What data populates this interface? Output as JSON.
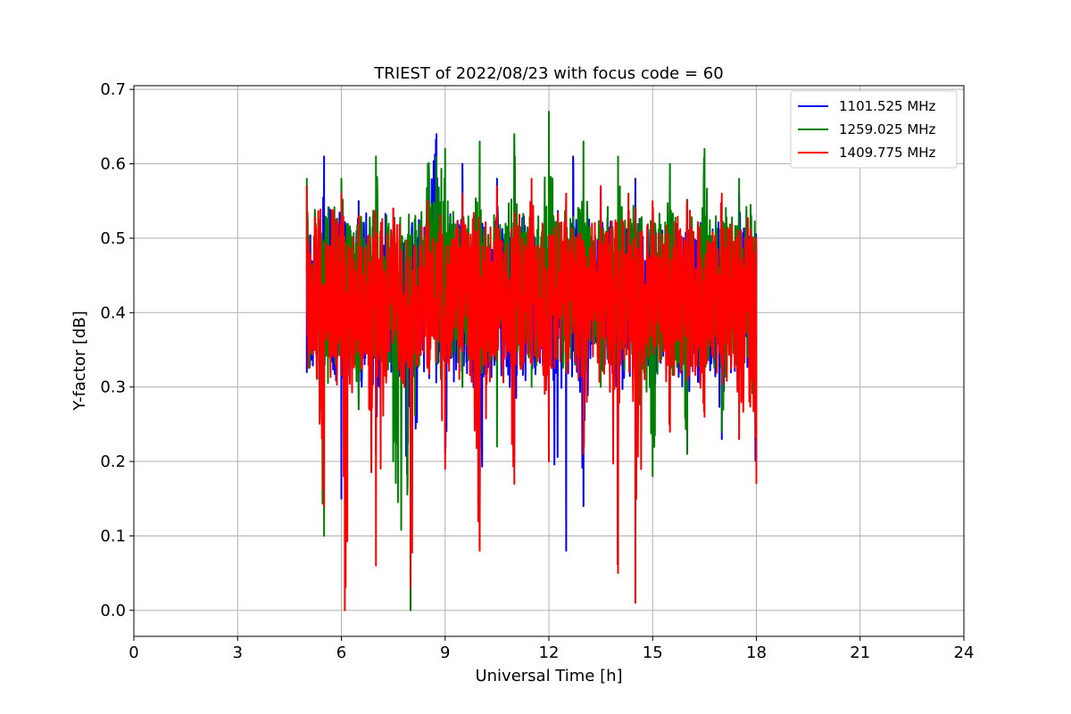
{
  "chart_data": {
    "type": "line",
    "title": "TRIEST of 2022/08/23 with focus code = 60",
    "xlabel": "Universal Time [h]",
    "ylabel": "Y-factor [dB]",
    "xlim": [
      0,
      24
    ],
    "ylim": [
      -0.035,
      0.705
    ],
    "xticks": [
      0,
      3,
      6,
      9,
      12,
      15,
      18,
      21,
      24
    ],
    "xtick_labels": [
      "0",
      "3",
      "6",
      "9",
      "12",
      "15",
      "18",
      "21",
      "24"
    ],
    "yticks": [
      0.0,
      0.1,
      0.2,
      0.3,
      0.4,
      0.5,
      0.6,
      0.7
    ],
    "ytick_labels": [
      "0.0",
      "0.1",
      "0.2",
      "0.3",
      "0.4",
      "0.5",
      "0.6",
      "0.7"
    ],
    "grid": true,
    "legend_position": "top-right",
    "x_range_of_data": [
      5.0,
      18.0
    ],
    "series": [
      {
        "name": "1101.525 MHz",
        "color": "#0000ff",
        "x": [
          5.0,
          5.5,
          6.0,
          6.5,
          7.0,
          7.5,
          8.0,
          8.5,
          8.75,
          9.0,
          9.5,
          10.0,
          10.5,
          11.0,
          11.5,
          12.0,
          12.5,
          12.7,
          13.0,
          13.5,
          14.0,
          14.5,
          15.0,
          15.5,
          16.0,
          16.5,
          17.0,
          17.5,
          18.0
        ],
        "values": [
          0.32,
          0.61,
          0.15,
          0.55,
          0.21,
          0.54,
          0.09,
          0.53,
          0.64,
          0.21,
          0.6,
          0.13,
          0.58,
          0.2,
          0.55,
          0.25,
          0.08,
          0.61,
          0.14,
          0.57,
          0.2,
          0.58,
          0.25,
          0.54,
          0.26,
          0.55,
          0.23,
          0.56,
          0.18
        ]
      },
      {
        "name": "1259.025 MHz",
        "color": "#008000",
        "x": [
          5.0,
          5.5,
          6.0,
          6.5,
          7.0,
          7.5,
          8.0,
          8.5,
          9.0,
          9.5,
          10.0,
          10.5,
          11.0,
          11.5,
          12.0,
          12.5,
          13.0,
          13.5,
          14.0,
          14.5,
          15.0,
          15.5,
          16.0,
          16.5,
          17.0,
          17.5,
          18.0
        ],
        "values": [
          0.58,
          0.1,
          0.58,
          0.27,
          0.61,
          0.2,
          0.0,
          0.6,
          0.62,
          0.3,
          0.63,
          0.22,
          0.64,
          0.3,
          0.67,
          0.32,
          0.63,
          0.3,
          0.61,
          0.31,
          0.18,
          0.6,
          0.21,
          0.62,
          0.24,
          0.58,
          0.2
        ]
      },
      {
        "name": "1409.775 MHz",
        "color": "#ff0000",
        "x": [
          5.0,
          5.5,
          6.0,
          6.1,
          6.5,
          7.0,
          7.5,
          8.0,
          8.5,
          9.0,
          9.5,
          10.0,
          10.5,
          11.0,
          11.5,
          12.0,
          12.5,
          13.0,
          13.5,
          14.0,
          14.3,
          14.5,
          15.0,
          15.5,
          16.0,
          16.5,
          17.0,
          17.5,
          18.0
        ],
        "values": [
          0.57,
          0.14,
          0.56,
          0.0,
          0.53,
          0.06,
          0.54,
          0.03,
          0.55,
          0.19,
          0.56,
          0.08,
          0.57,
          0.17,
          0.58,
          0.2,
          0.56,
          0.21,
          0.57,
          0.05,
          0.56,
          0.01,
          0.55,
          0.24,
          0.55,
          0.26,
          0.56,
          0.23,
          0.17
        ]
      }
    ]
  }
}
